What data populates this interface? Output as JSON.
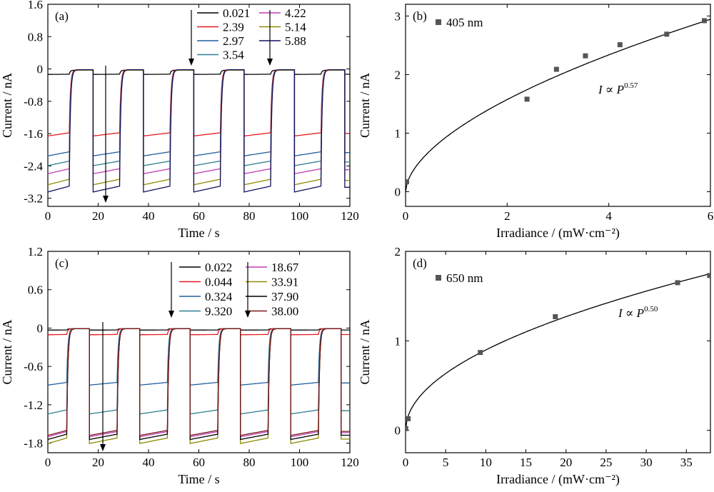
{
  "chart_data": [
    {
      "panel": "(a)",
      "type": "line",
      "xlabel": "Time / s",
      "ylabel": "Current / nA",
      "xlim": [
        0,
        120
      ],
      "ylim": [
        -3.4,
        1.6
      ],
      "xticks": [
        0,
        20,
        40,
        60,
        80,
        100,
        120
      ],
      "yticks": [
        1.6,
        0.8,
        0,
        -0.8,
        -1.6,
        -2.4,
        -3.2
      ],
      "ytick_labels": [
        "1.6",
        "0.8",
        "0",
        "-0.8",
        "-1.6",
        "-2.4",
        "-3.2"
      ],
      "legend_cols": 2,
      "legend_placement": "top-right",
      "on_periods": [
        [
          8.5,
          18
        ],
        [
          28.5,
          38
        ],
        [
          48.5,
          58
        ],
        [
          68.5,
          78
        ],
        [
          88.5,
          98
        ],
        [
          108.5,
          118
        ]
      ],
      "series": [
        {
          "name": "0.021",
          "color": "#000000",
          "on": -0.03,
          "off": -0.13
        },
        {
          "name": "2.39",
          "color": "#e8191c",
          "on": -0.02,
          "off": -1.58
        },
        {
          "name": "2.97",
          "color": "#1f5f9e",
          "on": -0.03,
          "off": -2.05
        },
        {
          "name": "3.54",
          "color": "#2d7f8f",
          "on": -0.03,
          "off": -2.28
        },
        {
          "name": "4.22",
          "color": "#c13bb5",
          "on": -0.03,
          "off": -2.47
        },
        {
          "name": "5.14",
          "color": "#8f8a00",
          "on": -0.03,
          "off": -2.73
        },
        {
          "name": "5.88",
          "color": "#101060",
          "on": -0.02,
          "off": -2.9
        }
      ]
    },
    {
      "panel": "(b)",
      "type": "scatter",
      "xlabel": "Irradiance / (mW·cm⁻²)",
      "ylabel": "Current / nA",
      "xlim": [
        0,
        6
      ],
      "ylim": [
        -0.25,
        3.2
      ],
      "xticks": [
        0,
        2,
        4,
        6
      ],
      "yticks": [
        0,
        1,
        2,
        3
      ],
      "legend": "405 nm",
      "fit_label": "I ∝ P",
      "fit_exponent": "0.57",
      "fit": {
        "coef": 1.06,
        "exp": 0.57
      },
      "points": [
        {
          "x": 0.021,
          "y": 0.17
        },
        {
          "x": 2.39,
          "y": 1.58
        },
        {
          "x": 2.97,
          "y": 2.09
        },
        {
          "x": 3.54,
          "y": 2.32
        },
        {
          "x": 4.22,
          "y": 2.51
        },
        {
          "x": 5.14,
          "y": 2.69
        },
        {
          "x": 5.88,
          "y": 2.92
        }
      ]
    },
    {
      "panel": "(c)",
      "type": "line",
      "xlabel": "Time / s",
      "ylabel": "Current / nA",
      "xlim": [
        0,
        120
      ],
      "ylim": [
        -1.95,
        1.2
      ],
      "xticks": [
        0,
        20,
        40,
        60,
        80,
        100,
        120
      ],
      "yticks": [
        1.2,
        0.6,
        0,
        -0.6,
        -1.2,
        -1.8
      ],
      "ytick_labels": [
        "1.2",
        "0.6",
        "0",
        "-0.6",
        "-1.2",
        "-1.8"
      ],
      "legend_cols": 2,
      "legend_placement": "top-right",
      "on_periods": [
        [
          7.5,
          16.5
        ],
        [
          27.5,
          36.5
        ],
        [
          47.5,
          56.5
        ],
        [
          67.5,
          76.5
        ],
        [
          87.5,
          96.5
        ],
        [
          107.5,
          116.5
        ]
      ],
      "series": [
        {
          "name": "0.022",
          "color": "#000000",
          "on": -0.01,
          "off": -0.03
        },
        {
          "name": "0.044",
          "color": "#e8191c",
          "on": -0.01,
          "off": -0.1
        },
        {
          "name": "0.324",
          "color": "#1f5f9e",
          "on": -0.01,
          "off": -0.85
        },
        {
          "name": "9.320",
          "color": "#2d7f8f",
          "on": -0.01,
          "off": -1.28
        },
        {
          "name": "18.67",
          "color": "#c13bb5",
          "on": -0.01,
          "off": -1.62
        },
        {
          "name": "33.91",
          "color": "#8f8a00",
          "on": -0.01,
          "off": -1.72
        },
        {
          "name": "37.90",
          "color": "#000000",
          "on": -0.01,
          "off": -1.66
        },
        {
          "name": "38.00",
          "color": "#7a1a1a",
          "on": -0.01,
          "off": -1.6
        }
      ]
    },
    {
      "panel": "(d)",
      "type": "scatter",
      "xlabel": "Irradiance / (mW·cm⁻²)",
      "ylabel": "Current / nA",
      "xlim": [
        0,
        38
      ],
      "ylim": [
        -0.25,
        2.0
      ],
      "xticks": [
        0,
        5,
        10,
        15,
        20,
        25,
        30,
        35
      ],
      "yticks": [
        0,
        1,
        2
      ],
      "legend": "650 nm",
      "fit_label": "I ∝ P",
      "fit_exponent": "0.50",
      "fit": {
        "coef": 0.284,
        "exp": 0.5
      },
      "points": [
        {
          "x": 0.022,
          "y": 0.02
        },
        {
          "x": 0.324,
          "y": 0.13
        },
        {
          "x": 9.32,
          "y": 0.87
        },
        {
          "x": 18.67,
          "y": 1.27
        },
        {
          "x": 33.91,
          "y": 1.65
        },
        {
          "x": 37.9,
          "y": 1.73
        }
      ]
    }
  ]
}
